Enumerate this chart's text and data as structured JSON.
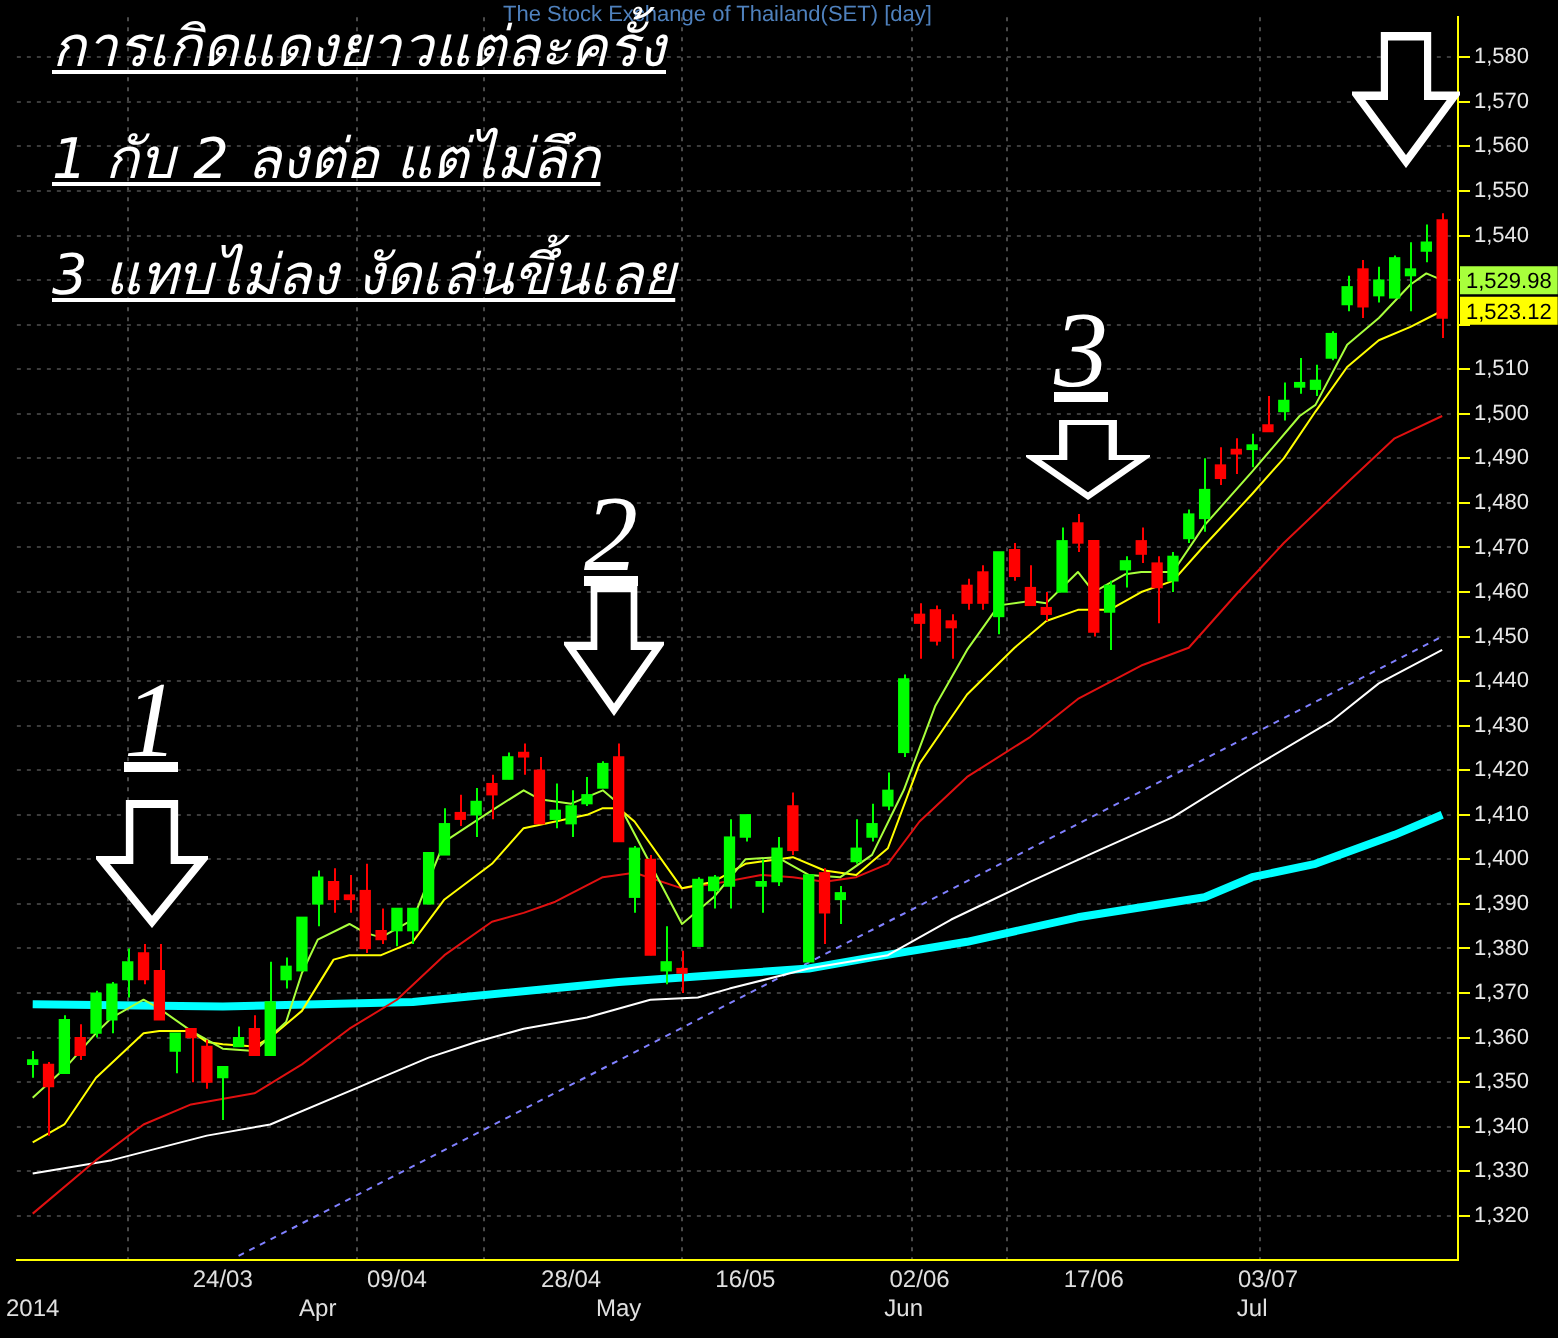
{
  "chart_data": {
    "type": "candlestick",
    "title": "The Stock Exchange of Thailand(SET) [day]",
    "categories": [
      "2014",
      null,
      null,
      null,
      null,
      null,
      null,
      null,
      null,
      null,
      null,
      null,
      "24/03",
      null,
      null,
      null,
      null,
      null,
      "Apr",
      null,
      null,
      null,
      null,
      "09/04",
      null,
      null,
      null,
      null,
      null,
      null,
      null,
      null,
      null,
      null,
      "28/04",
      null,
      null,
      "May",
      null,
      null,
      null,
      null,
      null,
      null,
      null,
      "16/05",
      null,
      null,
      null,
      null,
      null,
      null,
      null,
      null,
      null,
      "Jun",
      "02/06",
      null,
      null,
      null,
      null,
      null,
      null,
      null,
      null,
      null,
      null,
      "17/06",
      null,
      null,
      null,
      null,
      null,
      null,
      null,
      null,
      null,
      "Jul",
      "03/07",
      null,
      null,
      null,
      null,
      null,
      null,
      null,
      null,
      null,
      null,
      null
    ],
    "ohlc": [
      [
        1354,
        1357,
        1351,
        1355
      ],
      [
        1354,
        1354.5,
        1338,
        1349
      ],
      [
        1352,
        1365,
        1352,
        1364
      ],
      [
        1360,
        1363,
        1355,
        1356
      ],
      [
        1361,
        1370.5,
        1360,
        1370
      ],
      [
        1364,
        1372.5,
        1361,
        1372
      ],
      [
        1373,
        1380,
        1369,
        1377
      ],
      [
        1379,
        1381,
        1372,
        1373
      ],
      [
        1375,
        1381,
        1364,
        1364
      ],
      [
        1357,
        1361,
        1352,
        1361
      ],
      [
        1362,
        1362,
        1350,
        1360
      ],
      [
        1358,
        1359.5,
        1348.5,
        1350
      ],
      [
        1351,
        1353.5,
        1341.5,
        1353.5
      ],
      [
        1358,
        1362.5,
        1358,
        1360
      ],
      [
        1362,
        1365,
        1356,
        1356
      ],
      [
        1356,
        1377,
        1356,
        1368
      ],
      [
        1373,
        1378,
        1371,
        1376
      ],
      [
        1375,
        1387,
        1375,
        1387
      ],
      [
        1390,
        1397.5,
        1385,
        1396
      ],
      [
        1395,
        1398,
        1388,
        1391
      ],
      [
        1392,
        1396.5,
        1388,
        1391
      ],
      [
        1393,
        1399,
        1379,
        1380
      ],
      [
        1384,
        1389,
        1381,
        1382
      ],
      [
        1384,
        1389,
        1380.5,
        1389
      ],
      [
        1384,
        1389,
        1381,
        1389
      ],
      [
        1390,
        1401.5,
        1390,
        1401.5
      ],
      [
        1401,
        1411.5,
        1401,
        1408
      ],
      [
        1410.5,
        1414.5,
        1407.5,
        1409
      ],
      [
        1410,
        1416,
        1405,
        1413
      ],
      [
        1417,
        1419,
        1409,
        1414.5
      ],
      [
        1418,
        1424,
        1418,
        1423
      ],
      [
        1424,
        1426,
        1419,
        1423
      ],
      [
        1420,
        1423,
        1408,
        1408
      ],
      [
        1409,
        1417,
        1407,
        1411
      ],
      [
        1408,
        1415.5,
        1405,
        1412
      ],
      [
        1412.5,
        1418.5,
        1412,
        1414.5
      ],
      [
        1416,
        1422,
        1416,
        1421.5
      ],
      [
        1423,
        1426,
        1404,
        1404
      ],
      [
        1391.5,
        1403,
        1388,
        1402.5
      ],
      [
        1400,
        1401,
        1378.5,
        1378.5
      ],
      [
        1375,
        1385,
        1372,
        1377
      ],
      [
        1375.5,
        1379.5,
        1370,
        1374.5
      ],
      [
        1380.5,
        1396,
        1380.5,
        1395.5
      ],
      [
        1393,
        1396.5,
        1389,
        1396
      ],
      [
        1394,
        1409,
        1389,
        1405
      ],
      [
        1405,
        1410,
        1404,
        1410
      ],
      [
        1394,
        1400,
        1388,
        1395
      ],
      [
        1395,
        1405,
        1394,
        1402.5
      ],
      [
        1412,
        1415,
        1401,
        1402
      ],
      [
        1377,
        1396.5,
        1377,
        1396.5
      ],
      [
        1397,
        1398,
        1381,
        1388
      ],
      [
        1391,
        1394,
        1385.5,
        1392.5
      ],
      [
        1399.5,
        1409,
        1399,
        1402.5
      ],
      [
        1405,
        1412.5,
        1404,
        1408
      ],
      [
        1412,
        1419.5,
        1411,
        1415.5
      ],
      [
        1424,
        1441.5,
        1423,
        1440.5
      ],
      [
        1455,
        1457.5,
        1445,
        1453
      ],
      [
        1456,
        1457,
        1448,
        1449
      ],
      [
        1453.5,
        1455,
        1445,
        1452
      ],
      [
        1461.5,
        1463,
        1456,
        1457.5
      ],
      [
        1464.5,
        1466,
        1456,
        1457.5
      ],
      [
        1454.5,
        1469,
        1450.5,
        1469
      ],
      [
        1469.5,
        1471,
        1462.5,
        1463.5
      ],
      [
        1461,
        1466,
        1457,
        1457
      ],
      [
        1456.5,
        1460,
        1453.5,
        1455
      ],
      [
        1460,
        1474.5,
        1460,
        1471.5
      ],
      [
        1475.5,
        1477.5,
        1469,
        1471
      ],
      [
        1471.5,
        1471.5,
        1450,
        1451
      ],
      [
        1455.5,
        1462.5,
        1447,
        1461.5
      ],
      [
        1465,
        1468,
        1461,
        1467
      ],
      [
        1471.5,
        1474.5,
        1466.5,
        1468.5
      ],
      [
        1466.5,
        1468,
        1453,
        1461
      ],
      [
        1462.5,
        1469,
        1460,
        1468
      ],
      [
        1472,
        1478.5,
        1471,
        1477.5
      ],
      [
        1476.5,
        1490,
        1473.5,
        1483
      ],
      [
        1488.5,
        1492.5,
        1484,
        1485.5
      ],
      [
        1492,
        1494.5,
        1486.5,
        1491
      ],
      [
        1492,
        1495.5,
        1488,
        1493
      ],
      [
        1497.5,
        1504,
        1496,
        1496
      ],
      [
        1500.5,
        1507,
        1498.5,
        1503
      ],
      [
        1506,
        1512.5,
        1504.5,
        1507
      ],
      [
        1505.5,
        1511,
        1504,
        1507.5
      ],
      [
        1512.5,
        1518.5,
        1512,
        1518
      ],
      [
        1524.5,
        1531,
        1523,
        1528.5
      ],
      [
        1532.5,
        1534.5,
        1521.5,
        1524
      ],
      [
        1526.5,
        1533,
        1525,
        1530
      ],
      [
        1526,
        1535.5,
        1526,
        1535
      ],
      [
        1531,
        1538.5,
        1523,
        1532.5
      ],
      [
        1536.5,
        1542.5,
        1534,
        1538.5
      ],
      [
        1543.5,
        1545,
        1517,
        1521.5
      ]
    ],
    "series": [
      {
        "type": "line",
        "color": "#a8ff3c",
        "values": [
          1346.5,
          null,
          1353,
          null,
          1361,
          1364.5,
          null,
          1368.5,
          1366.5,
          null,
          1361.5,
          null,
          1357.5,
          null,
          1357,
          null,
          1363.5,
          1374.5,
          1382,
          null,
          1385.5,
          1383.5,
          1382.5,
          null,
          1386.5,
          null,
          1404,
          null,
          null,
          1411,
          null,
          1415.5,
          1413.5,
          null,
          1412.5,
          null,
          1415.5,
          1412.5,
          null,
          null,
          null,
          1385.5,
          null,
          1391.5,
          null,
          1400,
          null,
          1400.5,
          null,
          1396.5,
          null,
          1396,
          null,
          1401,
          null,
          1415.5,
          null,
          1434.5,
          null,
          1447,
          null,
          1457,
          null,
          1458,
          1457.5,
          1461,
          1464.5,
          1460,
          null,
          1464,
          1464.5,
          null,
          1464.5,
          null,
          1475,
          null,
          null,
          1487,
          null,
          null,
          1499.5,
          1502,
          null,
          1515.5,
          null,
          1521.5,
          null,
          1529,
          1531.5,
          1529.98
        ],
        "value_labels": [
          null,
          null,
          null,
          null,
          null,
          null,
          null,
          null,
          null,
          null,
          null,
          null,
          null,
          null,
          null,
          null,
          null,
          null,
          null,
          null,
          null,
          null,
          null,
          null,
          null,
          null,
          null,
          null,
          null,
          null,
          null,
          null,
          null,
          null,
          null,
          null,
          null,
          null,
          null,
          null,
          null,
          null,
          null,
          null,
          null,
          null,
          null,
          null,
          null,
          null,
          null,
          null,
          null,
          null,
          null,
          null,
          null,
          null,
          null,
          null,
          null,
          null,
          null,
          null,
          null,
          null,
          null,
          null,
          null,
          null,
          null,
          null,
          null,
          null,
          null,
          null,
          null,
          null,
          null,
          null,
          null,
          null,
          null,
          null,
          null,
          null,
          null,
          null,
          null,
          "1,529.98"
        ]
      },
      {
        "type": "line",
        "color": "#ffff00",
        "values": [
          1336.5,
          null,
          1340.5,
          null,
          1351,
          null,
          null,
          1361,
          1361.5,
          null,
          1361.5,
          1359,
          1358.5,
          null,
          1358,
          1360,
          null,
          1366,
          null,
          1377.5,
          1378.5,
          null,
          1378.5,
          null,
          1381.5,
          null,
          1391,
          null,
          null,
          1399,
          null,
          1407,
          null,
          1408.5,
          null,
          1410,
          1411.5,
          1411.5,
          1408.5,
          null,
          null,
          1393.5,
          null,
          1395,
          null,
          1399,
          1399.5,
          null,
          1400.5,
          null,
          1397.5,
          null,
          1396.5,
          null,
          1402.5,
          null,
          1421.5,
          null,
          null,
          1437,
          null,
          null,
          1447.5,
          null,
          1453.5,
          null,
          1456,
          null,
          1456,
          null,
          1460,
          null,
          1462.5,
          null,
          1470.5,
          null,
          null,
          1482,
          null,
          1490,
          null,
          1500.5,
          null,
          1510.5,
          null,
          1516.5,
          null,
          1519.5,
          null,
          1523.12
        ],
        "value_labels": [
          null,
          null,
          null,
          null,
          null,
          null,
          null,
          null,
          null,
          null,
          null,
          null,
          null,
          null,
          null,
          null,
          null,
          null,
          null,
          null,
          null,
          null,
          null,
          null,
          null,
          null,
          null,
          null,
          null,
          null,
          null,
          null,
          null,
          null,
          null,
          null,
          null,
          null,
          null,
          null,
          null,
          null,
          null,
          null,
          null,
          null,
          null,
          null,
          null,
          null,
          null,
          null,
          null,
          null,
          null,
          null,
          null,
          null,
          null,
          null,
          null,
          null,
          null,
          null,
          null,
          null,
          null,
          null,
          null,
          null,
          null,
          null,
          null,
          null,
          null,
          null,
          null,
          null,
          null,
          null,
          null,
          null,
          null,
          null,
          null,
          null,
          null,
          null,
          null,
          "1,523.12"
        ]
      },
      {
        "type": "line",
        "color": "#e01010",
        "values": [
          1320.5,
          null,
          null,
          null,
          1332.5,
          null,
          null,
          1340.5,
          null,
          null,
          1345,
          null,
          null,
          null,
          1347.5,
          null,
          null,
          1354,
          null,
          null,
          1362,
          null,
          null,
          1368.5,
          null,
          null,
          1378.5,
          null,
          null,
          1386,
          null,
          1388,
          null,
          1390.5,
          null,
          null,
          1396,
          null,
          1397,
          null,
          null,
          1393.5,
          null,
          1394.5,
          null,
          null,
          1396.5,
          null,
          1396,
          null,
          1395,
          null,
          1396,
          null,
          1399,
          null,
          1408.5,
          null,
          null,
          1418.5,
          null,
          null,
          null,
          1427.5,
          null,
          null,
          1436,
          null,
          null,
          null,
          1443.5,
          null,
          null,
          1447.5,
          null,
          null,
          1459.5,
          null,
          null,
          1471,
          null,
          null,
          null,
          1484.5,
          null,
          null,
          1494.5,
          null,
          null,
          1499.5
        ]
      },
      {
        "type": "line",
        "color": "#ffffff",
        "values": [
          1329.5,
          null,
          null,
          null,
          null,
          1332.5,
          null,
          null,
          null,
          null,
          null,
          1338,
          null,
          null,
          null,
          1340.5,
          null,
          null,
          null,
          null,
          1348,
          null,
          null,
          null,
          null,
          1355.5,
          null,
          null,
          1359,
          null,
          null,
          1362,
          null,
          null,
          null,
          1364.5,
          null,
          null,
          null,
          1368.5,
          null,
          null,
          1369,
          null,
          1371,
          null,
          null,
          null,
          null,
          1375.5,
          null,
          null,
          null,
          null,
          1378.5,
          null,
          null,
          null,
          1386.5,
          null,
          null,
          null,
          null,
          1395,
          null,
          null,
          null,
          1401.5,
          null,
          null,
          null,
          null,
          1409.5,
          null,
          null,
          null,
          null,
          1420.5,
          null,
          null,
          null,
          null,
          1431,
          null,
          null,
          1439.5,
          null,
          null,
          null,
          1447
        ]
      },
      {
        "type": "line",
        "color": "#00ffff",
        "values": [
          1367.5,
          null,
          null,
          null,
          null,
          null,
          null,
          null,
          null,
          null,
          null,
          null,
          1367,
          null,
          null,
          null,
          null,
          null,
          null,
          null,
          null,
          null,
          null,
          null,
          1368,
          null,
          null,
          null,
          null,
          null,
          null,
          null,
          null,
          null,
          null,
          null,
          null,
          1372.5,
          null,
          null,
          null,
          null,
          null,
          null,
          null,
          null,
          null,
          null,
          null,
          1375.5,
          null,
          null,
          null,
          1378,
          null,
          null,
          null,
          null,
          null,
          1381.5,
          null,
          null,
          null,
          null,
          null,
          null,
          1387,
          null,
          null,
          null,
          null,
          null,
          null,
          null,
          1391.5,
          null,
          null,
          1396,
          null,
          null,
          null,
          1399,
          null,
          null,
          null,
          null,
          1405.5,
          null,
          null,
          1410
        ]
      },
      {
        "type": "line",
        "color": "#8080ff",
        "line_style": "dashed",
        "values": [
          null,
          null,
          null,
          null,
          null,
          null,
          null,
          null,
          null,
          null,
          null,
          null,
          null,
          1311,
          null,
          null,
          null,
          null,
          null,
          null,
          null,
          null,
          null,
          null,
          null,
          null,
          null,
          null,
          null,
          null,
          null,
          null,
          null,
          null,
          null,
          null,
          null,
          null,
          null,
          null,
          null,
          null,
          null,
          null,
          null,
          null,
          null,
          null,
          null,
          null,
          null,
          null,
          null,
          null,
          null,
          null,
          null,
          null,
          null,
          null,
          null,
          null,
          null,
          null,
          null,
          null,
          null,
          null,
          null,
          null,
          null,
          null,
          null,
          null,
          null,
          null,
          null,
          null,
          null,
          null,
          null,
          null,
          null,
          null,
          null,
          null,
          null,
          null,
          null,
          1450
        ]
      }
    ],
    "ylim": [
      1310,
      1589
    ],
    "yticks": [
      {
        "value": 1320,
        "label": "1,320"
      },
      {
        "value": 1330,
        "label": "1,330"
      },
      {
        "value": 1340,
        "label": "1,340"
      },
      {
        "value": 1350,
        "label": "1,350"
      },
      {
        "value": 1360,
        "label": "1,360"
      },
      {
        "value": 1370,
        "label": "1,370"
      },
      {
        "value": 1380,
        "label": "1,380"
      },
      {
        "value": 1390,
        "label": "1,390"
      },
      {
        "value": 1400,
        "label": "1,400"
      },
      {
        "value": 1410,
        "label": "1,410"
      },
      {
        "value": 1420,
        "label": "1,420"
      },
      {
        "value": 1430,
        "label": "1,430"
      },
      {
        "value": 1440,
        "label": "1,440"
      },
      {
        "value": 1450,
        "label": "1,450"
      },
      {
        "value": 1460,
        "label": "1,460"
      },
      {
        "value": 1470,
        "label": "1,470"
      },
      {
        "value": 1480,
        "label": "1,480"
      },
      {
        "value": 1490,
        "label": "1,490"
      },
      {
        "value": 1500,
        "label": "1,500"
      },
      {
        "value": 1510,
        "label": "1,510"
      },
      {
        "value": 1520,
        "label": null
      },
      {
        "value": 1530,
        "label": null
      },
      {
        "value": 1540,
        "label": "1,540"
      },
      {
        "value": 1550,
        "label": "1,550"
      },
      {
        "value": 1560,
        "label": "1,560"
      },
      {
        "value": 1570,
        "label": "1,570"
      },
      {
        "value": 1580,
        "label": "1,580"
      }
    ],
    "grid": true,
    "annotations": [
      "การเกิดแดงยาวแต่ละครั้ง",
      "1 กับ 2  ลงต่อ แต่ไม่ลึก",
      "3 แทบไม่ลง งัดเล่นขึ้นเลย",
      "1",
      "2",
      "3"
    ]
  }
}
